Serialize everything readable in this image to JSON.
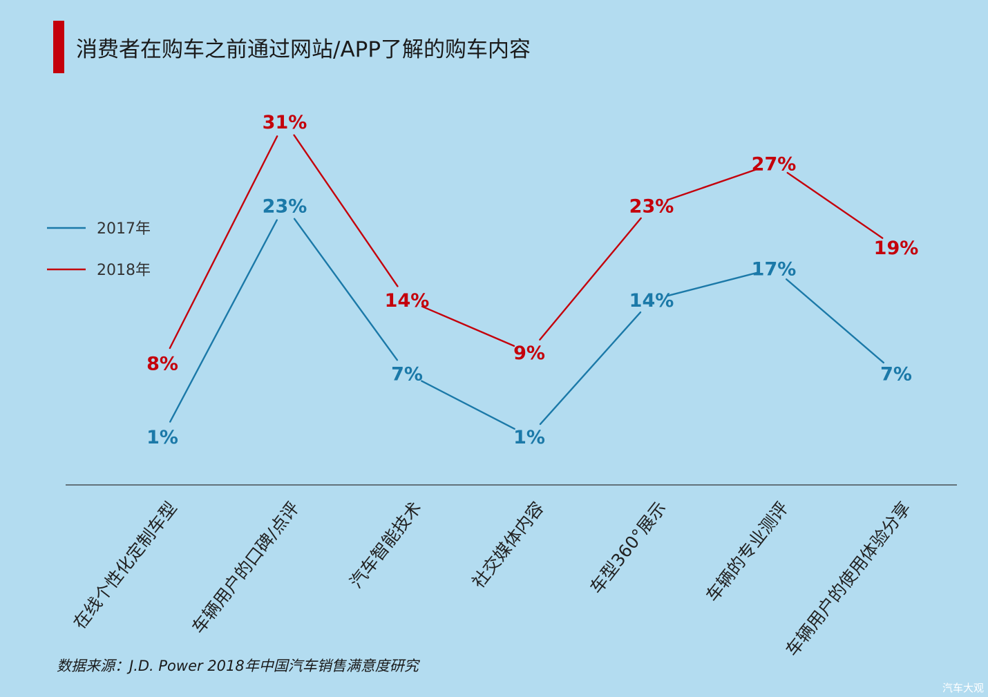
{
  "title": "消费者在购车之前通过网站/APP了解的购车内容",
  "source": "数据来源：J.D. Power 2018年中国汽车销售满意度研究",
  "watermark": "汽车大观",
  "colors": {
    "background": "#b3dcf0",
    "accent": "#c4000b",
    "series_2017": "#1b79a8",
    "series_2018": "#c4000b"
  },
  "chart_data": {
    "type": "line",
    "title": "消费者在购车之前通过网站/APP了解的购车内容",
    "categories": [
      "在线个性化定制车型",
      "车辆用户的口碑/点评",
      "汽车智能技术",
      "社交媒体内容",
      "车型360°展示",
      "车辆的专业测评",
      "车辆用户的使用体验分享"
    ],
    "series": [
      {
        "name": "2017年",
        "values": [
          1,
          23,
          7,
          1,
          14,
          17,
          7
        ],
        "labels": [
          "1%",
          "23%",
          "7%",
          "1%",
          "14%",
          "17%",
          "7%"
        ],
        "color": "#1b79a8"
      },
      {
        "name": "2018年",
        "values": [
          8,
          31,
          14,
          9,
          23,
          27,
          19
        ],
        "labels": [
          "8%",
          "31%",
          "14%",
          "9%",
          "23%",
          "27%",
          "19%"
        ],
        "color": "#c4000b"
      }
    ],
    "legend_position": "left",
    "grid": false,
    "y_axis_visible": false
  }
}
